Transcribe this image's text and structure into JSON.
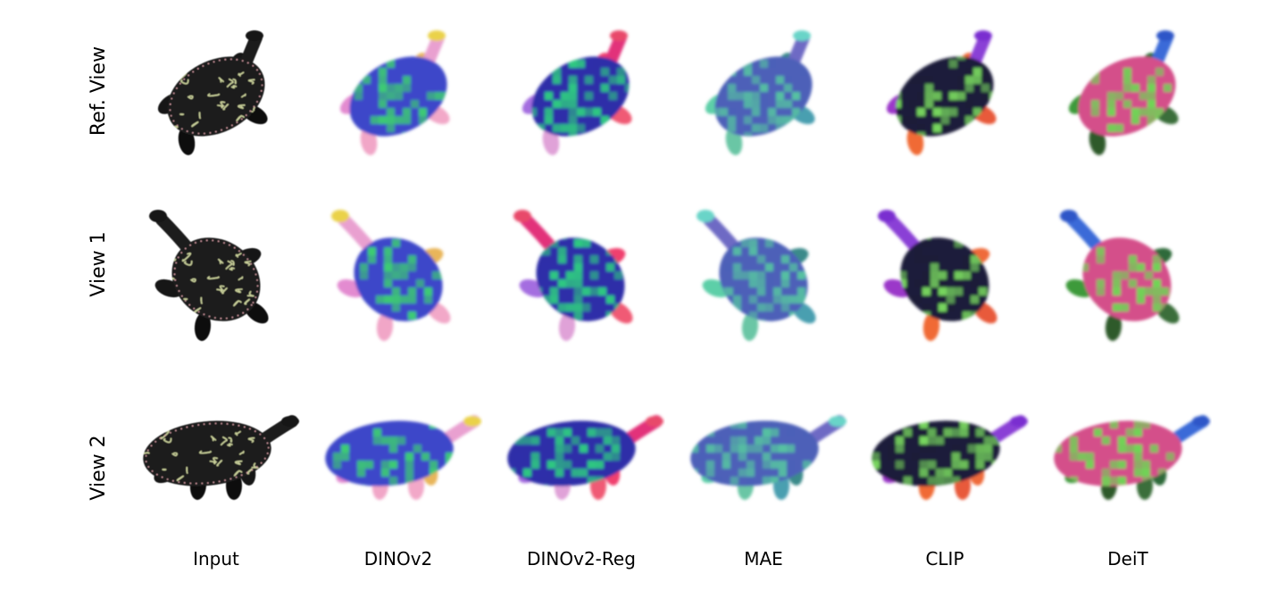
{
  "figure": {
    "rows": [
      {
        "label": "Ref. View",
        "pose": "ref"
      },
      {
        "label": "View 1",
        "pose": "view1"
      },
      {
        "label": "View 2",
        "pose": "view2"
      }
    ],
    "columns": [
      {
        "label": "Input",
        "style": "photo",
        "colors": {
          "shell": "#1a1a1a",
          "pattern": "#c8cf9a",
          "neck": "#1c1c1c",
          "head": "#121212",
          "fl": "#151515",
          "fr": "#151515",
          "bl": "#111111",
          "br": "#111111"
        }
      },
      {
        "label": "DINOv2",
        "style": "feature",
        "colors": {
          "shell": "#3d47c9",
          "pattern": "#3ed86a",
          "neck": "#e9a0d0",
          "head": "#ead24a",
          "fl": "#e38bd0",
          "fr": "#e8b55a",
          "bl": "#f1a6c7",
          "br": "#f2a8c8"
        }
      },
      {
        "label": "DINOv2-Reg",
        "style": "feature",
        "colors": {
          "shell": "#2d2fa8",
          "pattern": "#2fd07f",
          "neck": "#e2337a",
          "head": "#e8486b",
          "fl": "#a46de0",
          "fr": "#f03f6e",
          "bl": "#e0a2d8",
          "br": "#f05a75"
        }
      },
      {
        "label": "MAE",
        "style": "feature",
        "colors": {
          "shell": "#4d60b8",
          "pattern": "#56c7a0",
          "neck": "#6e6ac4",
          "head": "#69d4c8",
          "fl": "#5dcfa8",
          "fr": "#3a8a8a",
          "bl": "#6bc6a5",
          "br": "#4a9fb0"
        }
      },
      {
        "label": "CLIP",
        "style": "feature",
        "colors": {
          "shell": "#1c1f3a",
          "pattern": "#7de060",
          "neck": "#8a3fd6",
          "head": "#7a2fd0",
          "fl": "#9b39c9",
          "fr": "#ef6b3a",
          "bl": "#f06b35",
          "br": "#e85a3a"
        }
      },
      {
        "label": "DeiT",
        "style": "feature",
        "colors": {
          "shell": "#d4508a",
          "pattern": "#66e050",
          "neck": "#3a6ad8",
          "head": "#2f57c8",
          "fl": "#3d9a3a",
          "fr": "#2e6a3a",
          "bl": "#2f5a2a",
          "br": "#3b6e3b"
        }
      }
    ]
  }
}
